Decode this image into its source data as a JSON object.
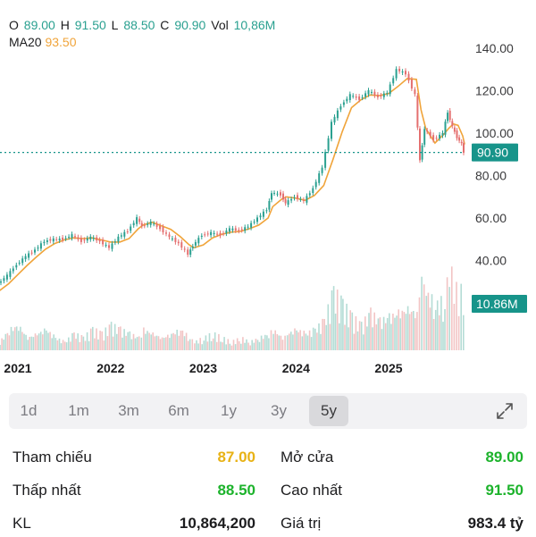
{
  "ohlc": {
    "o_label": "O",
    "o_value": "89.00",
    "h_label": "H",
    "h_value": "91.50",
    "l_label": "L",
    "l_value": "88.50",
    "c_label": "C",
    "c_value": "90.90",
    "vol_label": "Vol",
    "vol_value": "10,86M"
  },
  "ma": {
    "label": "MA20",
    "value": "93.50"
  },
  "colors": {
    "up": "#2aa090",
    "down": "#e46f6f",
    "ma_line": "#f0a43a",
    "price_tag": "#17948a",
    "vol_up": "#b4dcd5",
    "vol_down": "#f2c4c4"
  },
  "chart_data": {
    "type": "line",
    "y_ticks": [
      "140.00",
      "120.00",
      "100.00",
      "80.00",
      "60.00",
      "40.00"
    ],
    "ylim": [
      20,
      140
    ],
    "x_ticks": [
      "2021",
      "2022",
      "2023",
      "2024",
      "2025"
    ],
    "current_price_label": "90.90",
    "current_price": 90.9,
    "current_volume_label": "10.86M",
    "x": [
      2020.6,
      2020.7,
      2020.8,
      2020.9,
      2021.0,
      2021.1,
      2021.2,
      2021.3,
      2021.4,
      2021.5,
      2021.6,
      2021.7,
      2021.8,
      2021.9,
      2022.0,
      2022.1,
      2022.2,
      2022.3,
      2022.35,
      2022.45,
      2022.55,
      2022.65,
      2022.75,
      2022.85,
      2022.9,
      2023.0,
      2023.1,
      2023.2,
      2023.3,
      2023.4,
      2023.5,
      2023.6,
      2023.7,
      2023.75,
      2023.85,
      2023.9,
      2024.0,
      2024.1,
      2024.2,
      2024.3,
      2024.4,
      2024.5,
      2024.6,
      2024.7,
      2024.8,
      2024.9,
      2025.0,
      2025.1,
      2025.2,
      2025.3,
      2025.35,
      2025.4,
      2025.5,
      2025.6,
      2025.65,
      2025.7,
      2025.75,
      2025.8,
      2025.82
    ],
    "series": [
      {
        "values": [
          23,
          25,
          29,
          33,
          38,
          42,
          45,
          49,
          50,
          50,
          52,
          49,
          51,
          49,
          46,
          51,
          54,
          60,
          56,
          58,
          55,
          51,
          48,
          43,
          47,
          52,
          53,
          52,
          55,
          54,
          56,
          60,
          64,
          72,
          71,
          67,
          70,
          68,
          74,
          84,
          105,
          113,
          118,
          116,
          120,
          117,
          119,
          130,
          128,
          118,
          87,
          102,
          97,
          100,
          110,
          103,
          98,
          95,
          90.9
        ]
      }
    ],
    "volume": [
      3,
      4,
      2,
      5,
      6,
      3,
      4,
      5,
      3,
      2,
      4,
      3,
      5,
      4,
      6,
      5,
      4,
      3,
      5,
      4,
      3,
      4,
      5,
      3,
      2,
      3,
      4,
      3,
      2,
      3,
      2,
      3,
      4,
      5,
      3,
      4,
      5,
      4,
      5,
      7,
      14,
      11,
      8,
      6,
      9,
      7,
      8,
      9,
      10,
      9,
      18,
      14,
      11,
      12,
      20,
      16,
      13,
      15,
      10.86
    ],
    "volume_max": 22
  },
  "range_tabs": [
    {
      "label": "1d"
    },
    {
      "label": "1m"
    },
    {
      "label": "3m"
    },
    {
      "label": "6m"
    },
    {
      "label": "1y"
    },
    {
      "label": "3y"
    },
    {
      "label": "5y"
    }
  ],
  "active_range": "5y",
  "stats": {
    "tham_chieu_label": "Tham chiếu",
    "tham_chieu_value": "87.00",
    "mo_cua_label": "Mở cửa",
    "mo_cua_value": "89.00",
    "thap_nhat_label": "Thấp nhất",
    "thap_nhat_value": "88.50",
    "cao_nhat_label": "Cao nhất",
    "cao_nhat_value": "91.50",
    "kl_label": "KL",
    "kl_value": "10,864,200",
    "gia_tri_label": "Giá trị",
    "gia_tri_value": "983.4 tỷ"
  }
}
